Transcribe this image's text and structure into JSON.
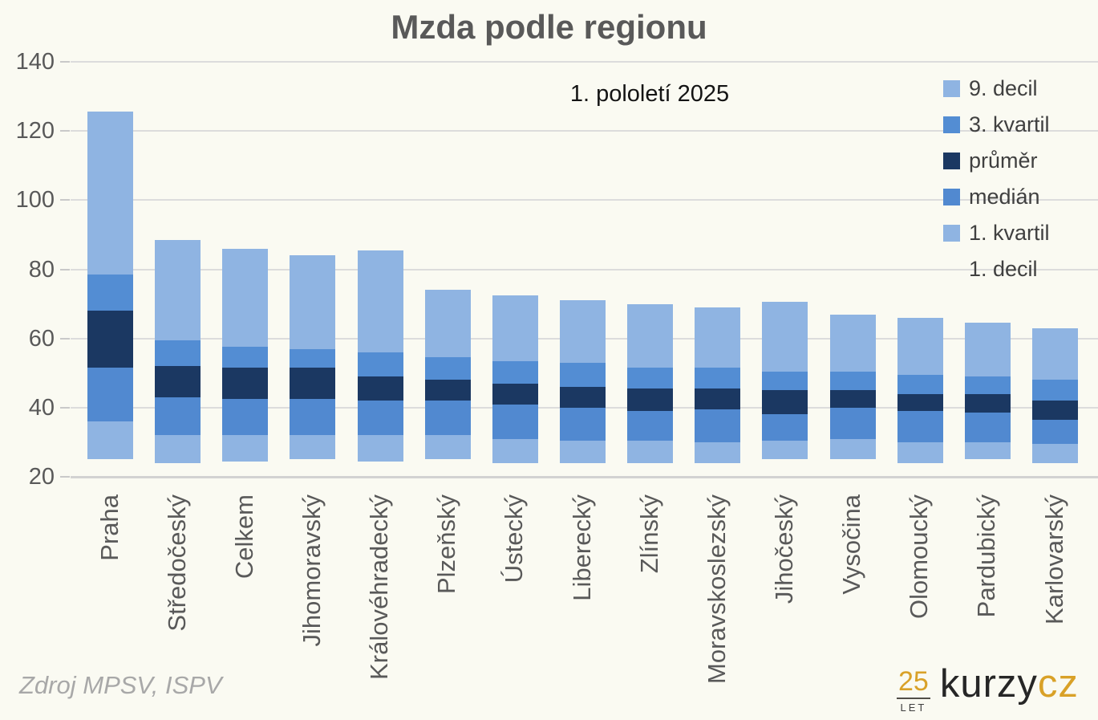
{
  "title": "Mzda podle regionu",
  "subtitle": "1. pololetí 2025",
  "source": "Zdroj MPSV, ISPV",
  "logo": {
    "years": "25",
    "years_label": "LET",
    "brand": "kurzy",
    "brand_suffix": "cz"
  },
  "colors": {
    "light_blue": "#8FB4E2",
    "mid_blue": "#538DD3",
    "mid_blue2": "#5189D0",
    "dark_navy": "#1B3862",
    "grid": "#DCDCDC",
    "axis_text": "#595959",
    "legend_text": "#404040",
    "background": "#FAFAF2",
    "gold": "#D9A128"
  },
  "legend": [
    {
      "label": "9. decil",
      "color_key": "light_blue"
    },
    {
      "label": "3. kvartil",
      "color_key": "mid_blue"
    },
    {
      "label": "průměr",
      "color_key": "dark_navy"
    },
    {
      "label": "medián",
      "color_key": "mid_blue2"
    },
    {
      "label": "1. kvartil",
      "color_key": "light_blue"
    },
    {
      "label": "1. decil",
      "color_key": "none"
    }
  ],
  "chart_data": {
    "type": "bar",
    "subtype": "stacked-range-columns",
    "title": "Mzda podle regionu",
    "subtitle": "1. pololetí 2025",
    "xlabel": "",
    "ylabel": "",
    "ylim": [
      20,
      140
    ],
    "yticks": [
      20,
      40,
      60,
      80,
      100,
      120,
      140
    ],
    "grid": true,
    "legend_position": "top-right",
    "categories": [
      "Praha",
      "Středočeský",
      "Celkem",
      "Jihomoravský",
      "Královéhradecký",
      "Plzeňský",
      "Ústecký",
      "Liberecký",
      "Zlínský",
      "Moravskoslezský",
      "Jihočeský",
      "Vysočina",
      "Olomoucký",
      "Pardubický",
      "Karlovarský"
    ],
    "series": [
      {
        "name": "1. decil",
        "values": [
          25,
          24,
          24.5,
          25,
          24.5,
          25,
          24,
          24,
          24,
          24,
          25,
          25,
          24,
          25,
          24
        ]
      },
      {
        "name": "1. kvartil",
        "values": [
          36,
          32,
          32,
          32,
          32,
          32,
          31,
          30.5,
          30.5,
          30,
          30.5,
          31,
          30,
          30,
          29.5
        ]
      },
      {
        "name": "medián",
        "values": [
          51.5,
          43,
          42.5,
          42.5,
          42,
          42,
          41,
          40,
          39,
          39.5,
          38,
          40,
          39,
          38.5,
          36.5
        ]
      },
      {
        "name": "průměr",
        "values": [
          68,
          52,
          51.5,
          51.5,
          49,
          48,
          47,
          46,
          45.5,
          45.5,
          45,
          45,
          44,
          44,
          42
        ]
      },
      {
        "name": "3. kvartil",
        "values": [
          78.5,
          59.5,
          57.5,
          57,
          56,
          54.5,
          53.5,
          53,
          51.5,
          51.5,
          50.5,
          50.5,
          49.5,
          49,
          48
        ]
      },
      {
        "name": "9. decil",
        "values": [
          125.5,
          88.5,
          86,
          84,
          85.5,
          74,
          72.5,
          71,
          70,
          69,
          70.5,
          67,
          66,
          64.5,
          63
        ]
      }
    ]
  }
}
